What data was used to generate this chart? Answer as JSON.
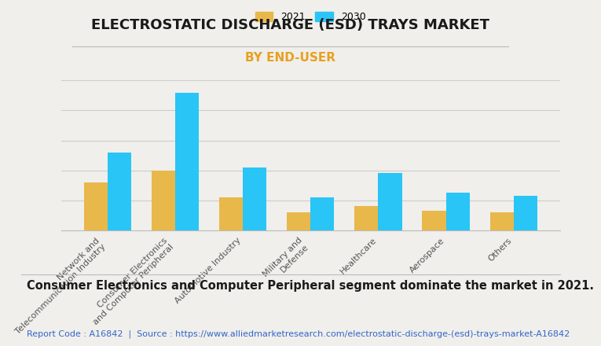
{
  "title": "ELECTROSTATIC DISCHARGE (ESD) TRAYS MARKET",
  "subtitle": "BY END-USER",
  "categories": [
    "Network and\nTelecommunication Industry",
    "Consumer Electronics\nand Computer Peripheral",
    "Automotive Industry",
    "Military and\nDefense",
    "Healthcare",
    "Aerospace",
    "Others"
  ],
  "values_2021": [
    3.2,
    4.0,
    2.2,
    1.2,
    1.6,
    1.3,
    1.2
  ],
  "values_2030": [
    5.2,
    9.2,
    4.2,
    2.2,
    3.8,
    2.5,
    2.3
  ],
  "color_2021": "#E8B84B",
  "color_2030": "#29C5F6",
  "background_color": "#F0EFEB",
  "legend_labels": [
    "2021",
    "2030"
  ],
  "bar_width": 0.35,
  "ylim": [
    0,
    10
  ],
  "grid_color": "#CCCCCC",
  "title_fontsize": 13,
  "subtitle_fontsize": 11,
  "subtitle_color": "#E8A020",
  "footnote": "Consumer Electronics and Computer Peripheral segment dominate the market in 2021.",
  "report_code": "Report Code : A16842  |  Source : https://www.alliedmarketresearch.com/electrostatic-discharge-(esd)-trays-market-A16842",
  "footnote_fontsize": 10.5,
  "report_fontsize": 8,
  "tick_label_fontsize": 8,
  "tick_label_color": "#555555"
}
